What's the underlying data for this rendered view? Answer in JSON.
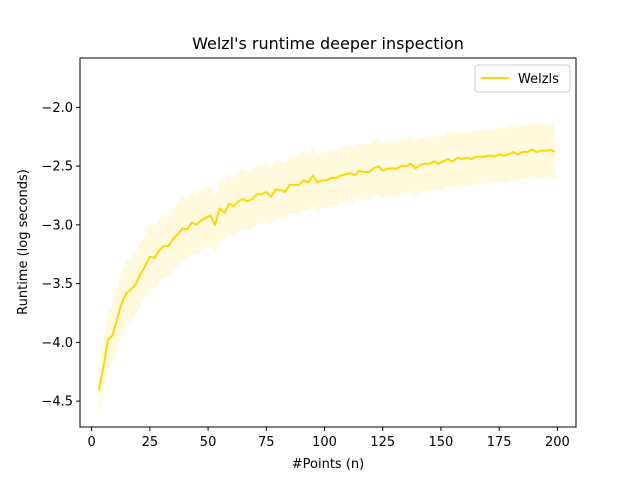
{
  "chart_data": {
    "type": "line",
    "title": "Welzl's runtime deeper inspection",
    "xlabel": "#Points (n)",
    "ylabel": "Runtime (log seconds)",
    "xlim": [
      -5,
      208
    ],
    "ylim": [
      -4.72,
      -1.58
    ],
    "xticks": [
      0,
      25,
      50,
      75,
      100,
      125,
      150,
      175,
      200
    ],
    "yticks": [
      -4.5,
      -4.0,
      -3.5,
      -3.0,
      -2.5,
      -2.0
    ],
    "ytick_labels": [
      "−4.5",
      "−4.0",
      "−3.5",
      "−3.0",
      "−2.5",
      "−2.0"
    ],
    "grid": false,
    "legend_position": "top-right",
    "series": [
      {
        "name": "Welzls",
        "color": "#FFD700",
        "band_color": "#FFD700",
        "x": [
          3,
          5,
          7,
          9,
          11,
          13,
          15,
          17,
          19,
          21,
          23,
          25,
          27,
          29,
          31,
          33,
          35,
          37,
          39,
          41,
          43,
          45,
          47,
          49,
          51,
          53,
          55,
          57,
          59,
          61,
          63,
          65,
          67,
          69,
          71,
          73,
          75,
          77,
          79,
          81,
          83,
          85,
          87,
          89,
          91,
          93,
          95,
          97,
          99,
          101,
          103,
          105,
          107,
          109,
          111,
          113,
          115,
          117,
          119,
          121,
          123,
          125,
          127,
          129,
          131,
          133,
          135,
          137,
          139,
          141,
          143,
          145,
          147,
          149,
          151,
          153,
          155,
          157,
          159,
          161,
          163,
          165,
          167,
          169,
          171,
          173,
          175,
          177,
          179,
          181,
          183,
          185,
          187,
          189,
          191,
          193,
          195,
          197,
          199
        ],
        "y": [
          -4.41,
          -4.22,
          -3.98,
          -3.94,
          -3.8,
          -3.66,
          -3.58,
          -3.55,
          -3.5,
          -3.42,
          -3.35,
          -3.27,
          -3.28,
          -3.22,
          -3.18,
          -3.18,
          -3.12,
          -3.08,
          -3.03,
          -3.04,
          -2.98,
          -3.0,
          -2.96,
          -2.94,
          -2.92,
          -3.0,
          -2.86,
          -2.9,
          -2.82,
          -2.84,
          -2.8,
          -2.78,
          -2.8,
          -2.78,
          -2.74,
          -2.74,
          -2.72,
          -2.76,
          -2.7,
          -2.7,
          -2.72,
          -2.66,
          -2.66,
          -2.66,
          -2.62,
          -2.64,
          -2.58,
          -2.64,
          -2.62,
          -2.62,
          -2.6,
          -2.6,
          -2.58,
          -2.57,
          -2.56,
          -2.58,
          -2.54,
          -2.55,
          -2.55,
          -2.52,
          -2.5,
          -2.54,
          -2.52,
          -2.52,
          -2.52,
          -2.5,
          -2.5,
          -2.48,
          -2.52,
          -2.49,
          -2.48,
          -2.48,
          -2.46,
          -2.48,
          -2.46,
          -2.44,
          -2.46,
          -2.43,
          -2.44,
          -2.43,
          -2.44,
          -2.42,
          -2.42,
          -2.42,
          -2.41,
          -2.42,
          -2.4,
          -2.41,
          -2.4,
          -2.38,
          -2.4,
          -2.38,
          -2.38,
          -2.36,
          -2.38,
          -2.37,
          -2.37,
          -2.36,
          -2.38
        ],
        "band_low": [
          -4.62,
          -4.42,
          -4.22,
          -4.18,
          -4.06,
          -3.94,
          -3.86,
          -3.82,
          -3.77,
          -3.69,
          -3.62,
          -3.55,
          -3.55,
          -3.49,
          -3.45,
          -3.44,
          -3.38,
          -3.35,
          -3.3,
          -3.3,
          -3.25,
          -3.26,
          -3.22,
          -3.2,
          -3.18,
          -3.24,
          -3.12,
          -3.15,
          -3.08,
          -3.09,
          -3.06,
          -3.04,
          -3.05,
          -3.03,
          -2.99,
          -2.99,
          -2.97,
          -3.0,
          -2.95,
          -2.95,
          -2.96,
          -2.91,
          -2.91,
          -2.91,
          -2.87,
          -2.88,
          -2.83,
          -2.88,
          -2.86,
          -2.86,
          -2.84,
          -2.84,
          -2.82,
          -2.81,
          -2.8,
          -2.82,
          -2.78,
          -2.79,
          -2.79,
          -2.76,
          -2.74,
          -2.77,
          -2.76,
          -2.76,
          -2.75,
          -2.74,
          -2.73,
          -2.71,
          -2.75,
          -2.72,
          -2.71,
          -2.71,
          -2.69,
          -2.71,
          -2.69,
          -2.67,
          -2.69,
          -2.66,
          -2.67,
          -2.66,
          -2.67,
          -2.65,
          -2.65,
          -2.65,
          -2.64,
          -2.65,
          -2.63,
          -2.64,
          -2.63,
          -2.61,
          -2.63,
          -2.61,
          -2.61,
          -2.59,
          -2.61,
          -2.6,
          -2.6,
          -2.59,
          -2.61
        ],
        "band_high": [
          -4.2,
          -4.02,
          -3.74,
          -3.7,
          -3.54,
          -3.38,
          -3.3,
          -3.28,
          -3.23,
          -3.15,
          -3.08,
          -2.99,
          -3.01,
          -2.95,
          -2.91,
          -2.92,
          -2.86,
          -2.81,
          -2.76,
          -2.78,
          -2.71,
          -2.74,
          -2.7,
          -2.68,
          -2.66,
          -2.76,
          -2.6,
          -2.65,
          -2.56,
          -2.59,
          -2.54,
          -2.52,
          -2.55,
          -2.53,
          -2.49,
          -2.49,
          -2.47,
          -2.52,
          -2.45,
          -2.45,
          -2.48,
          -2.41,
          -2.41,
          -2.41,
          -2.37,
          -2.4,
          -2.33,
          -2.4,
          -2.38,
          -2.38,
          -2.36,
          -2.36,
          -2.34,
          -2.33,
          -2.32,
          -2.34,
          -2.3,
          -2.31,
          -2.31,
          -2.28,
          -2.26,
          -2.31,
          -2.28,
          -2.28,
          -2.29,
          -2.26,
          -2.27,
          -2.25,
          -2.29,
          -2.26,
          -2.25,
          -2.25,
          -2.23,
          -2.25,
          -2.23,
          -2.21,
          -2.23,
          -2.2,
          -2.21,
          -2.2,
          -2.21,
          -2.19,
          -2.19,
          -2.19,
          -2.18,
          -2.19,
          -2.17,
          -2.18,
          -2.17,
          -2.15,
          -2.17,
          -2.15,
          -2.15,
          -2.13,
          -2.15,
          -2.14,
          -2.14,
          -2.13,
          -2.15
        ]
      }
    ]
  }
}
